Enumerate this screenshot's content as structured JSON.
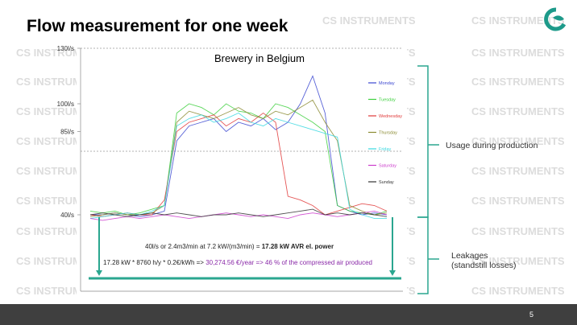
{
  "slide": {
    "title": "Flow measurement for one week",
    "page_number": "5",
    "watermark": "CS INSTRUMENTS"
  },
  "chart_data": {
    "type": "line",
    "title": "Brewery in Belgium",
    "categories": [
      null,
      null,
      null,
      null,
      null,
      null,
      null,
      null,
      null,
      null,
      null,
      null,
      null,
      null,
      null,
      null,
      null,
      null,
      null,
      null,
      null,
      null,
      null,
      null,
      null
    ],
    "ylim": [
      0,
      130
    ],
    "yticks": [
      {
        "value": 130,
        "label": "130l/s"
      },
      {
        "value": 100,
        "label": "100l/s"
      },
      {
        "value": 85,
        "label": "85l/s"
      },
      {
        "value": 40,
        "label": "40l/s"
      }
    ],
    "grid": false,
    "series": [
      {
        "name": "Monday",
        "color": "#3a46d0",
        "values": [
          40,
          40,
          41,
          40,
          39,
          40,
          42,
          80,
          88,
          90,
          92,
          85,
          90,
          88,
          92,
          86,
          90,
          100,
          115,
          95,
          45,
          42,
          40,
          41,
          40
        ]
      },
      {
        "name": "Tuesday",
        "color": "#3ccf3c",
        "values": [
          42,
          41,
          42,
          40,
          41,
          43,
          45,
          95,
          100,
          98,
          94,
          100,
          96,
          95,
          92,
          100,
          98,
          94,
          90,
          85,
          45,
          42,
          41,
          40,
          42
        ]
      },
      {
        "name": "Wednesday",
        "color": "#e03a3a",
        "values": [
          40,
          39,
          40,
          41,
          40,
          40,
          48,
          85,
          90,
          92,
          94,
          88,
          92,
          90,
          95,
          90,
          50,
          48,
          45,
          40,
          42,
          44,
          46,
          45,
          42
        ]
      },
      {
        "name": "Thursday",
        "color": "#8a8a30",
        "values": [
          39,
          40,
          41,
          40,
          40,
          41,
          45,
          90,
          96,
          94,
          92,
          95,
          98,
          94,
          92,
          96,
          94,
          98,
          102,
          90,
          80,
          45,
          42,
          40,
          41
        ]
      },
      {
        "name": "Friday",
        "color": "#3ad8e0",
        "values": [
          38,
          39,
          40,
          41,
          40,
          42,
          45,
          88,
          92,
          94,
          90,
          92,
          95,
          90,
          88,
          92,
          90,
          88,
          86,
          84,
          82,
          43,
          40,
          38,
          38
        ]
      },
      {
        "name": "Saturday",
        "color": "#cc3ccc",
        "values": [
          38,
          37,
          38,
          39,
          38,
          39,
          40,
          39,
          38,
          39,
          40,
          41,
          40,
          39,
          40,
          39,
          38,
          40,
          41,
          40,
          39,
          40,
          41,
          42,
          40
        ]
      },
      {
        "name": "Sunday",
        "color": "#333333",
        "values": [
          40,
          41,
          40,
          39,
          40,
          41,
          40,
          41,
          40,
          39,
          40,
          40,
          41,
          40,
          39,
          40,
          41,
          42,
          43,
          40,
          41,
          40,
          41,
          40,
          39
        ]
      }
    ]
  },
  "annotations": {
    "usage": "Usage during production",
    "leakage": [
      "Leakages",
      "(standstill losses)"
    ],
    "formula_1": {
      "text": "40l/s or 2.4m3/min at 7.2 kW/(m3/min) = ",
      "bold": "17.28 kW AVR el. power"
    },
    "formula_2": {
      "text": "17.28 kW * 8760 h/y * 0.2€/kWh => ",
      "highlight": "30,274.56 €/year => 46 % of the compressed air produced"
    }
  }
}
